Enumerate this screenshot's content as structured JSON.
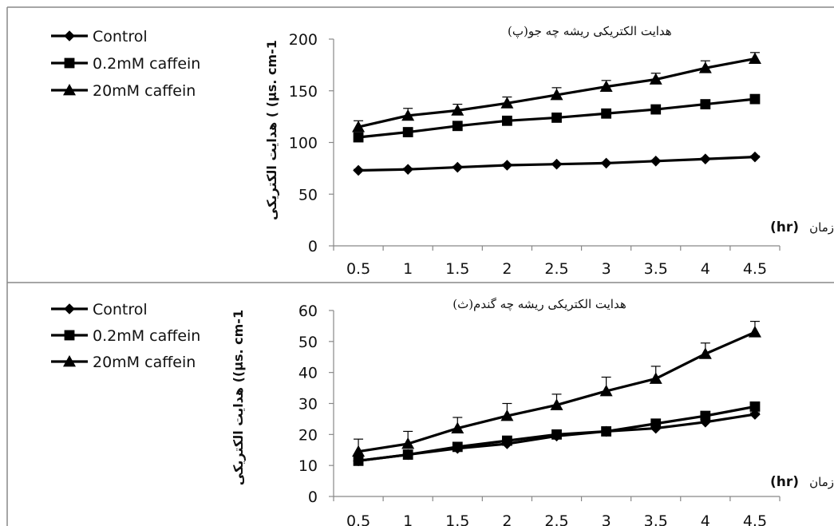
{
  "chart_data": [
    {
      "type": "line",
      "title": "هدایت الکتریکی ریشه چه جو(پ)",
      "ylabel": "هدایت الکتریکی ( (µs. cm-1",
      "xunit_fa": "زمان",
      "xunit_en": "(hr)",
      "categories": [
        "0.5",
        "1",
        "1.5",
        "2",
        "2.5",
        "3",
        "3.5",
        "4",
        "4.5"
      ],
      "yticks": [
        "0",
        "50",
        "100",
        "150",
        "200"
      ],
      "ylim": [
        0,
        200
      ],
      "legend_position": "top-left",
      "grid": false,
      "series": [
        {
          "name": "Control",
          "marker": "diamond",
          "values": [
            73,
            74,
            76,
            78,
            79,
            80,
            82,
            84,
            86
          ],
          "errors": [
            1,
            1,
            1,
            1,
            1,
            1,
            1,
            1,
            1
          ]
        },
        {
          "name": "0.2mM caffein",
          "marker": "square",
          "values": [
            105,
            110,
            116,
            121,
            124,
            128,
            132,
            137,
            142
          ],
          "errors": [
            2,
            3,
            3,
            3,
            3,
            3,
            3,
            3,
            3
          ]
        },
        {
          "name": "20mM caffein",
          "marker": "triangle",
          "values": [
            115,
            126,
            131,
            138,
            146,
            154,
            161,
            172,
            181
          ],
          "errors": [
            6,
            7,
            6,
            6,
            7,
            6,
            6,
            7,
            6
          ]
        }
      ]
    },
    {
      "type": "line",
      "title": "هدایت الکتریکی ریشه چه گندم(ث)",
      "ylabel": "هدایت الکتریکی ((µs. cm-1",
      "xunit_fa": "زمان",
      "xunit_en": "(hr)",
      "categories": [
        "0.5",
        "1",
        "1.5",
        "2",
        "2.5",
        "3",
        "3.5",
        "4",
        "4.5"
      ],
      "yticks": [
        "0",
        "10",
        "20",
        "30",
        "40",
        "50",
        "60"
      ],
      "ylim": [
        0,
        60
      ],
      "legend_position": "top-left",
      "grid": false,
      "series": [
        {
          "name": "Control",
          "marker": "diamond",
          "values": [
            11.5,
            13.5,
            15.5,
            17,
            19.5,
            21,
            22,
            24,
            26.5
          ],
          "errors": [
            0.5,
            0.5,
            0.5,
            0.5,
            0.5,
            0.5,
            0.5,
            0.5,
            0.5
          ]
        },
        {
          "name": "0.2mM caffein",
          "marker": "square",
          "values": [
            11.5,
            13.5,
            16,
            18,
            20,
            21,
            23.5,
            26,
            29
          ],
          "errors": [
            0.5,
            0.5,
            0.5,
            0.5,
            0.5,
            0.5,
            0.5,
            0.5,
            0.5
          ]
        },
        {
          "name": "20mM caffein",
          "marker": "triangle",
          "values": [
            14.5,
            17,
            22,
            26,
            29.5,
            34,
            38,
            46,
            53
          ],
          "errors": [
            4,
            4,
            3.5,
            4,
            3.5,
            4.5,
            4,
            3.5,
            3.5
          ]
        }
      ]
    }
  ]
}
